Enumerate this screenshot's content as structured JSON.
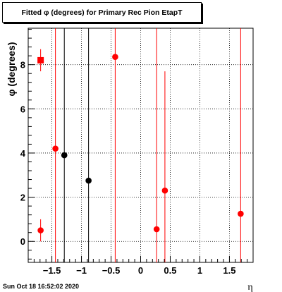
{
  "chart_data": {
    "type": "scatter",
    "title": "Fitted φ (degrees) for Primary Rec Pion EtapT",
    "xlabel": "η",
    "ylabel": "φ (degrees)",
    "xlim": [
      -1.9,
      1.9
    ],
    "ylim": [
      -0.95,
      9.65
    ],
    "x_ticks": [
      -1.5,
      -1,
      -0.5,
      0,
      0.5,
      1,
      1.5
    ],
    "x_tick_labels": [
      "−1.5",
      "−1",
      "−0.5",
      "0",
      "0.5",
      "1",
      "1.5"
    ],
    "y_ticks": [
      0,
      2,
      4,
      6,
      8
    ],
    "y_tick_labels": [
      "0",
      "2",
      "4",
      "6",
      "8"
    ],
    "grid": true,
    "series": [
      {
        "color": "#ff0000",
        "points": [
          {
            "x": -1.69,
            "y": 8.2,
            "marker": "square",
            "yerr_low": 7.7,
            "yerr_high": 8.7
          },
          {
            "x": -1.69,
            "y": 0.5,
            "marker": "circle",
            "yerr_low": 0.0,
            "yerr_high": 1.0
          },
          {
            "x": -1.44,
            "y": 4.2,
            "marker": "circle",
            "yerr_low": -0.95,
            "yerr_high": 9.65
          },
          {
            "x": -0.43,
            "y": 8.35,
            "marker": "circle",
            "yerr_low": -0.95,
            "yerr_high": 9.65
          },
          {
            "x": 0.27,
            "y": 0.55,
            "marker": "circle",
            "yerr_low": -0.95,
            "yerr_high": 9.65
          },
          {
            "x": 0.41,
            "y": 2.3,
            "marker": "circle",
            "yerr_low": -0.95,
            "yerr_high": 7.7
          },
          {
            "x": 1.69,
            "y": 1.25,
            "marker": "circle",
            "yerr_low": -0.95,
            "yerr_high": 9.65
          }
        ]
      },
      {
        "color": "#000000",
        "points": [
          {
            "x": -1.29,
            "y": 3.9,
            "marker": "circle",
            "yerr_low": -0.95,
            "yerr_high": 9.65
          },
          {
            "x": -0.88,
            "y": 2.75,
            "marker": "circle",
            "yerr_low": -0.95,
            "yerr_high": 9.65
          }
        ]
      }
    ]
  },
  "footer": {
    "timestamp": "Sun Oct 18 16:52:02 2020"
  }
}
